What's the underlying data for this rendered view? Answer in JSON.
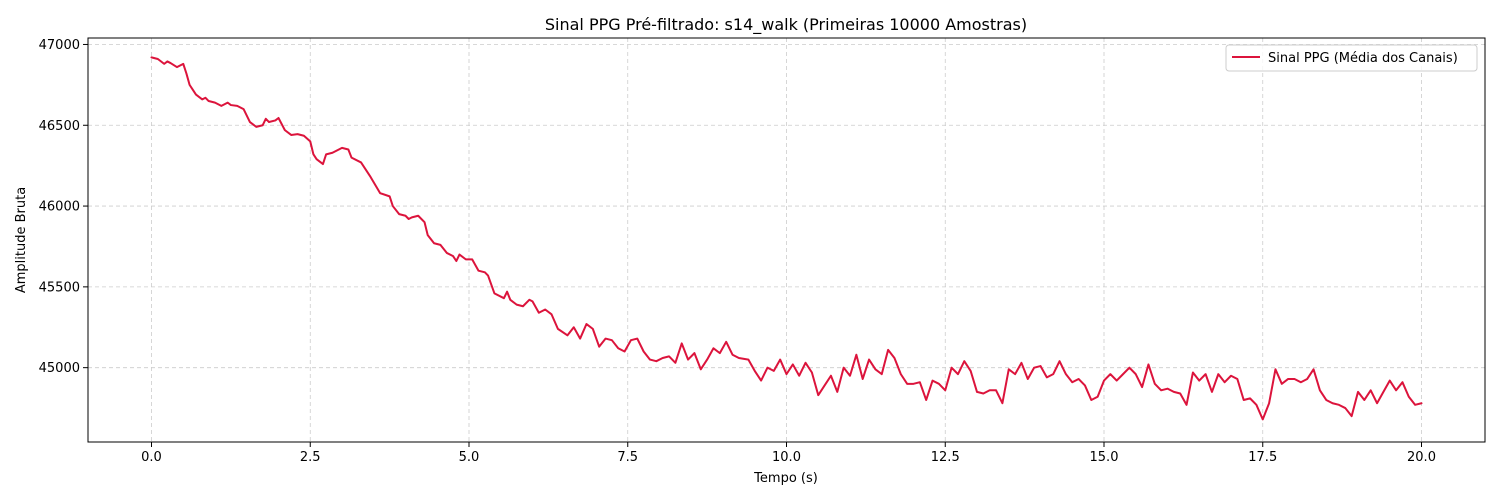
{
  "chart_data": {
    "type": "line",
    "title": "Sinal PPG Pré-filtrado: s14_walk (Primeiras 10000 Amostras)",
    "xlabel": "Tempo (s)",
    "ylabel": "Amplitude Bruta",
    "xlim": [
      -1.0,
      21.0
    ],
    "ylim": [
      44540,
      47040
    ],
    "xticks": [
      0.0,
      2.5,
      5.0,
      7.5,
      10.0,
      12.5,
      15.0,
      17.5,
      20.0
    ],
    "xtick_labels": [
      "0.0",
      "2.5",
      "5.0",
      "7.5",
      "10.0",
      "12.5",
      "15.0",
      "17.5",
      "20.0"
    ],
    "yticks": [
      45000,
      45500,
      46000,
      46500,
      47000
    ],
    "ytick_labels": [
      "45000",
      "45500",
      "46000",
      "46500",
      "47000"
    ],
    "grid": true,
    "legend_position": "upper right",
    "series": [
      {
        "name": "Sinal PPG (Média dos Canais)",
        "color": "#dc143c",
        "points": [
          [
            0.0,
            46920
          ],
          [
            0.1,
            46910
          ],
          [
            0.2,
            46880
          ],
          [
            0.25,
            46895
          ],
          [
            0.3,
            46885
          ],
          [
            0.4,
            46860
          ],
          [
            0.5,
            46880
          ],
          [
            0.55,
            46820
          ],
          [
            0.6,
            46750
          ],
          [
            0.65,
            46720
          ],
          [
            0.7,
            46690
          ],
          [
            0.8,
            46660
          ],
          [
            0.85,
            46670
          ],
          [
            0.9,
            46650
          ],
          [
            1.0,
            46640
          ],
          [
            1.1,
            46620
          ],
          [
            1.15,
            46630
          ],
          [
            1.2,
            46640
          ],
          [
            1.25,
            46625
          ],
          [
            1.35,
            46620
          ],
          [
            1.45,
            46600
          ],
          [
            1.55,
            46520
          ],
          [
            1.65,
            46490
          ],
          [
            1.75,
            46500
          ],
          [
            1.8,
            46540
          ],
          [
            1.85,
            46520
          ],
          [
            1.95,
            46530
          ],
          [
            2.0,
            46545
          ],
          [
            2.1,
            46470
          ],
          [
            2.2,
            46440
          ],
          [
            2.3,
            46445
          ],
          [
            2.4,
            46435
          ],
          [
            2.5,
            46400
          ],
          [
            2.55,
            46320
          ],
          [
            2.6,
            46290
          ],
          [
            2.7,
            46260
          ],
          [
            2.75,
            46320
          ],
          [
            2.85,
            46330
          ],
          [
            2.95,
            46350
          ],
          [
            3.0,
            46360
          ],
          [
            3.1,
            46350
          ],
          [
            3.15,
            46300
          ],
          [
            3.3,
            46270
          ],
          [
            3.45,
            46180
          ],
          [
            3.6,
            46080
          ],
          [
            3.75,
            46060
          ],
          [
            3.8,
            46000
          ],
          [
            3.9,
            45950
          ],
          [
            4.0,
            45940
          ],
          [
            4.05,
            45920
          ],
          [
            4.1,
            45930
          ],
          [
            4.2,
            45940
          ],
          [
            4.3,
            45900
          ],
          [
            4.35,
            45820
          ],
          [
            4.45,
            45770
          ],
          [
            4.55,
            45760
          ],
          [
            4.65,
            45710
          ],
          [
            4.75,
            45690
          ],
          [
            4.8,
            45660
          ],
          [
            4.85,
            45700
          ],
          [
            4.95,
            45670
          ],
          [
            5.05,
            45670
          ],
          [
            5.15,
            45600
          ],
          [
            5.25,
            45590
          ],
          [
            5.3,
            45570
          ],
          [
            5.4,
            45460
          ],
          [
            5.55,
            45430
          ],
          [
            5.6,
            45470
          ],
          [
            5.65,
            45420
          ],
          [
            5.75,
            45390
          ],
          [
            5.85,
            45380
          ],
          [
            5.95,
            45420
          ],
          [
            6.0,
            45410
          ],
          [
            6.1,
            45340
          ],
          [
            6.2,
            45360
          ],
          [
            6.3,
            45330
          ],
          [
            6.4,
            45240
          ],
          [
            6.55,
            45200
          ],
          [
            6.65,
            45250
          ],
          [
            6.75,
            45180
          ],
          [
            6.85,
            45270
          ],
          [
            6.95,
            45240
          ],
          [
            7.05,
            45130
          ],
          [
            7.15,
            45180
          ],
          [
            7.25,
            45170
          ],
          [
            7.35,
            45120
          ],
          [
            7.45,
            45100
          ],
          [
            7.55,
            45170
          ],
          [
            7.65,
            45180
          ],
          [
            7.75,
            45100
          ],
          [
            7.85,
            45050
          ],
          [
            7.95,
            45040
          ],
          [
            8.05,
            45060
          ],
          [
            8.15,
            45070
          ],
          [
            8.25,
            45030
          ],
          [
            8.35,
            45150
          ],
          [
            8.45,
            45050
          ],
          [
            8.55,
            45090
          ],
          [
            8.65,
            44990
          ],
          [
            8.75,
            45050
          ],
          [
            8.85,
            45120
          ],
          [
            8.95,
            45090
          ],
          [
            9.05,
            45160
          ],
          [
            9.15,
            45080
          ],
          [
            9.25,
            45060
          ],
          [
            9.4,
            45050
          ],
          [
            9.5,
            44980
          ],
          [
            9.6,
            44920
          ],
          [
            9.7,
            45000
          ],
          [
            9.8,
            44980
          ],
          [
            9.9,
            45050
          ],
          [
            10.0,
            44960
          ],
          [
            10.1,
            45020
          ],
          [
            10.2,
            44950
          ],
          [
            10.3,
            45030
          ],
          [
            10.4,
            44970
          ],
          [
            10.5,
            44830
          ],
          [
            10.6,
            44890
          ],
          [
            10.7,
            44950
          ],
          [
            10.8,
            44850
          ],
          [
            10.9,
            45000
          ],
          [
            11.0,
            44950
          ],
          [
            11.1,
            45080
          ],
          [
            11.2,
            44930
          ],
          [
            11.3,
            45050
          ],
          [
            11.4,
            44990
          ],
          [
            11.5,
            44960
          ],
          [
            11.6,
            45110
          ],
          [
            11.7,
            45060
          ],
          [
            11.8,
            44960
          ],
          [
            11.9,
            44900
          ],
          [
            12.0,
            44900
          ],
          [
            12.1,
            44910
          ],
          [
            12.2,
            44800
          ],
          [
            12.3,
            44920
          ],
          [
            12.4,
            44900
          ],
          [
            12.5,
            44860
          ],
          [
            12.6,
            45000
          ],
          [
            12.7,
            44960
          ],
          [
            12.8,
            45040
          ],
          [
            12.9,
            44980
          ],
          [
            13.0,
            44850
          ],
          [
            13.1,
            44840
          ],
          [
            13.2,
            44860
          ],
          [
            13.3,
            44860
          ],
          [
            13.4,
            44780
          ],
          [
            13.5,
            44990
          ],
          [
            13.6,
            44960
          ],
          [
            13.7,
            45030
          ],
          [
            13.8,
            44930
          ],
          [
            13.9,
            45000
          ],
          [
            14.0,
            45010
          ],
          [
            14.1,
            44940
          ],
          [
            14.2,
            44960
          ],
          [
            14.3,
            45040
          ],
          [
            14.4,
            44960
          ],
          [
            14.5,
            44910
          ],
          [
            14.6,
            44930
          ],
          [
            14.7,
            44890
          ],
          [
            14.8,
            44800
          ],
          [
            14.9,
            44820
          ],
          [
            15.0,
            44920
          ],
          [
            15.1,
            44960
          ],
          [
            15.2,
            44920
          ],
          [
            15.3,
            44960
          ],
          [
            15.4,
            45000
          ],
          [
            15.5,
            44960
          ],
          [
            15.6,
            44880
          ],
          [
            15.7,
            45020
          ],
          [
            15.8,
            44900
          ],
          [
            15.9,
            44860
          ],
          [
            16.0,
            44870
          ],
          [
            16.1,
            44850
          ],
          [
            16.2,
            44840
          ],
          [
            16.3,
            44770
          ],
          [
            16.4,
            44970
          ],
          [
            16.5,
            44920
          ],
          [
            16.6,
            44960
          ],
          [
            16.7,
            44850
          ],
          [
            16.8,
            44960
          ],
          [
            16.9,
            44910
          ],
          [
            17.0,
            44950
          ],
          [
            17.1,
            44930
          ],
          [
            17.2,
            44800
          ],
          [
            17.3,
            44810
          ],
          [
            17.4,
            44770
          ],
          [
            17.5,
            44680
          ],
          [
            17.6,
            44780
          ],
          [
            17.7,
            44990
          ],
          [
            17.8,
            44900
          ],
          [
            17.9,
            44930
          ],
          [
            18.0,
            44930
          ],
          [
            18.1,
            44910
          ],
          [
            18.2,
            44930
          ],
          [
            18.3,
            44990
          ],
          [
            18.4,
            44860
          ],
          [
            18.5,
            44800
          ],
          [
            18.6,
            44780
          ],
          [
            18.7,
            44770
          ],
          [
            18.8,
            44750
          ],
          [
            18.9,
            44700
          ],
          [
            19.0,
            44850
          ],
          [
            19.1,
            44800
          ],
          [
            19.2,
            44860
          ],
          [
            19.3,
            44780
          ],
          [
            19.4,
            44850
          ],
          [
            19.5,
            44920
          ],
          [
            19.6,
            44860
          ],
          [
            19.7,
            44910
          ],
          [
            19.8,
            44820
          ],
          [
            19.9,
            44770
          ],
          [
            20.0,
            44780
          ]
        ]
      }
    ]
  }
}
